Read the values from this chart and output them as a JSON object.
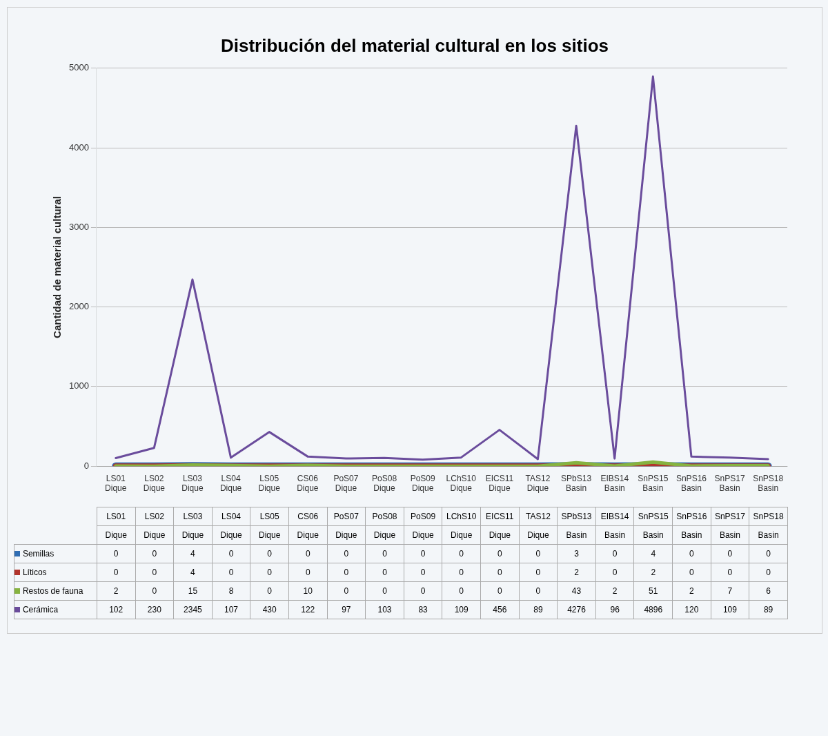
{
  "chart_data": {
    "type": "line",
    "title": "Distribución del material cultural en los sitios",
    "ylabel": "Cantidad de material cultural",
    "categories": [
      "LS01\nDique",
      "LS02\nDique",
      "LS03\nDique",
      "LS04\nDique",
      "LS05\nDique",
      "CS06\nDique",
      "PoS07\nDique",
      "PoS08\nDique",
      "PoS09\nDique",
      "LChS10\nDique",
      "EICS11\nDique",
      "TAS12\nDique",
      "SPbS13\nBasin",
      "EIBS14\nBasin",
      "SnPS15\nBasin",
      "SnPS16\nBasin",
      "SnPS17\nBasin",
      "SnPS18\nBasin"
    ],
    "series": [
      {
        "name": "Semillas",
        "color": "#2f6db3",
        "values": [
          0,
          0,
          4,
          0,
          0,
          0,
          0,
          0,
          0,
          0,
          0,
          0,
          3,
          0,
          4,
          0,
          0,
          0
        ],
        "value_labels": [
          "0",
          "0",
          "4",
          "0",
          "0",
          "0",
          "0",
          "0",
          "0",
          "0",
          "0",
          "0",
          "3",
          "0",
          "4",
          "0",
          "0",
          "0"
        ]
      },
      {
        "name": "Líticos",
        "color": "#b2342c",
        "values": [
          0,
          0,
          4,
          0,
          0,
          0,
          0,
          0,
          0,
          0,
          0,
          0,
          2,
          0,
          2,
          0,
          0,
          0
        ],
        "value_labels": [
          "0",
          "0",
          "4",
          "0",
          "0",
          "0",
          "0",
          "0",
          "0",
          "0",
          "0",
          "0",
          "2",
          "0",
          "2",
          "0",
          "0",
          "0"
        ]
      },
      {
        "name": "Restos de fauna",
        "color": "#86b340",
        "values": [
          2,
          0,
          15,
          8,
          0,
          10,
          0,
          0,
          0,
          0,
          0,
          0,
          43,
          2,
          51,
          2,
          7,
          6
        ],
        "value_labels": [
          "2",
          "0",
          "15",
          "8",
          "0",
          "10",
          "0",
          "0",
          "0",
          "0",
          "0",
          "0",
          "43",
          "2",
          "51",
          "2",
          "7",
          "6"
        ]
      },
      {
        "name": "Cerámica",
        "color": "#6a4c9c",
        "values": [
          102,
          230,
          2345,
          107,
          430,
          122,
          97,
          103,
          83,
          109,
          456,
          89,
          4276,
          96,
          4896,
          120,
          109,
          89
        ],
        "value_labels": [
          "102",
          "230",
          "2345",
          "107",
          "430",
          "122",
          "97",
          "103",
          "83",
          "109",
          "456",
          "89",
          "4276",
          "96",
          "4896",
          "120",
          "109",
          "89"
        ]
      }
    ],
    "ylim": [
      0,
      5000
    ],
    "yticks": [
      0,
      1000,
      2000,
      3000,
      4000,
      5000
    ],
    "grid": "y",
    "legend": "bottom",
    "marker": "none",
    "line_style": "solid"
  }
}
